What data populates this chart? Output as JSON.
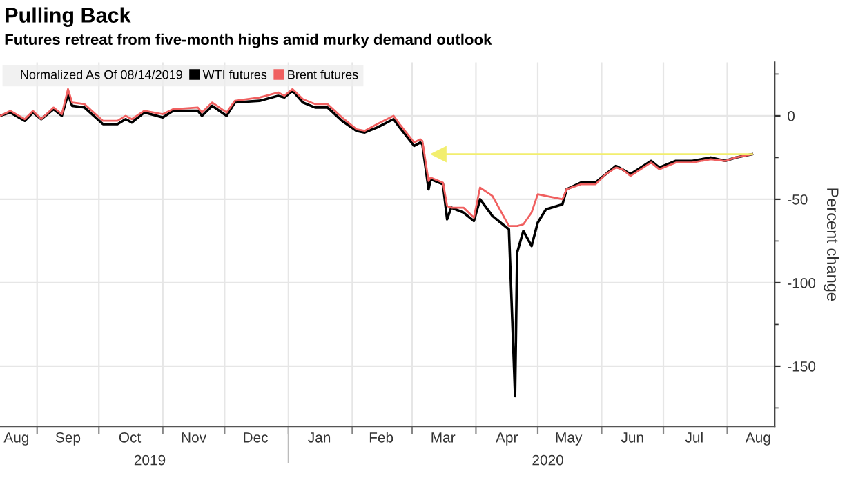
{
  "chart_data": {
    "type": "line",
    "title": "Pulling Back",
    "subtitle": "Futures retreat from five-month highs amid murky demand outlook",
    "ylabel": "Percent change",
    "legend_title": "Normalized As Of 08/14/2019",
    "legend": "top left",
    "grid": true,
    "xlim": [
      "2019-08-14",
      "2020-08-24"
    ],
    "xticks": [
      {
        "value": "2019-09-01",
        "label": null
      },
      {
        "value": "2019-10-01",
        "label": null
      },
      {
        "value": "2019-11-01",
        "label": null
      },
      {
        "value": "2019-12-01",
        "label": null
      },
      {
        "value": "2020-01-01",
        "label": null
      },
      {
        "value": "2020-02-01",
        "label": null
      },
      {
        "value": "2020-03-01",
        "label": null
      },
      {
        "value": "2020-04-01",
        "label": null
      },
      {
        "value": "2020-05-01",
        "label": null
      },
      {
        "value": "2020-06-01",
        "label": null
      },
      {
        "value": "2020-07-01",
        "label": null
      },
      {
        "value": "2020-08-01",
        "label": null
      },
      {
        "value": "2019-08-22",
        "label": "Aug"
      },
      {
        "value": "2019-09-16",
        "label": "Sep"
      },
      {
        "value": "2019-10-16",
        "label": "Oct"
      },
      {
        "value": "2019-11-16",
        "label": "Nov"
      },
      {
        "value": "2019-12-16",
        "label": "Dec"
      },
      {
        "value": "2020-01-16",
        "label": "Jan"
      },
      {
        "value": "2020-02-15",
        "label": "Feb"
      },
      {
        "value": "2020-03-16",
        "label": "Mar"
      },
      {
        "value": "2020-04-16",
        "label": "Apr"
      },
      {
        "value": "2020-05-16",
        "label": "May"
      },
      {
        "value": "2020-06-16",
        "label": "Jun"
      },
      {
        "value": "2020-07-16",
        "label": "Jul"
      },
      {
        "value": "2020-08-16",
        "label": "Aug"
      }
    ],
    "ylim": [
      -186,
      32
    ],
    "yticks": [
      {
        "value": 25,
        "label": null
      },
      0,
      {
        "value": -25,
        "label": null
      },
      -50,
      {
        "value": -75,
        "label": null
      },
      -100,
      {
        "value": -125,
        "label": null
      },
      -150,
      {
        "value": -175,
        "label": null
      }
    ],
    "annotations": [
      "2019",
      "2020"
    ],
    "series": [
      {
        "name": "WTI futures",
        "color": "#000000",
        "x": [
          "2019-08-14",
          "2019-08-19",
          "2019-08-26",
          "2019-08-30",
          "2019-09-03",
          "2019-09-09",
          "2019-09-13",
          "2019-09-16",
          "2019-09-18",
          "2019-09-24",
          "2019-10-03",
          "2019-10-10",
          "2019-10-14",
          "2019-10-17",
          "2019-10-23",
          "2019-11-01",
          "2019-11-06",
          "2019-11-18",
          "2019-11-20",
          "2019-11-25",
          "2019-12-02",
          "2019-12-06",
          "2019-12-18",
          "2019-12-27",
          "2019-12-30",
          "2020-01-03",
          "2020-01-08",
          "2020-01-14",
          "2020-01-20",
          "2020-01-27",
          "2020-02-03",
          "2020-02-07",
          "2020-02-13",
          "2020-02-21",
          "2020-02-24",
          "2020-03-02",
          "2020-03-05",
          "2020-03-06",
          "2020-03-09",
          "2020-03-10",
          "2020-03-16",
          "2020-03-18",
          "2020-03-20",
          "2020-03-26",
          "2020-03-31",
          "2020-04-03",
          "2020-04-09",
          "2020-04-17",
          "2020-04-20",
          "2020-04-21",
          "2020-04-24",
          "2020-04-28",
          "2020-05-01",
          "2020-05-05",
          "2020-05-13",
          "2020-05-15",
          "2020-05-22",
          "2020-05-29",
          "2020-06-03",
          "2020-06-08",
          "2020-06-11",
          "2020-06-15",
          "2020-06-25",
          "2020-06-29",
          "2020-07-07",
          "2020-07-15",
          "2020-07-24",
          "2020-07-31",
          "2020-08-05",
          "2020-08-13"
        ],
        "values": [
          0,
          2,
          -3,
          2,
          -2,
          4,
          0,
          13,
          6,
          5,
          -5,
          -5,
          -2,
          -4,
          2,
          -1,
          3,
          3,
          0,
          6,
          0,
          8,
          9,
          12,
          11,
          15,
          8,
          5,
          5,
          -3,
          -9,
          -10,
          -7,
          -2,
          -7,
          -18,
          -16,
          -17,
          -44,
          -38,
          -41,
          -62,
          -55,
          -58,
          -63,
          -50,
          -60,
          -68,
          -168,
          -82,
          -69,
          -78,
          -64,
          -56,
          -53,
          -44,
          -40,
          -40,
          -35,
          -30,
          -32,
          -35,
          -27,
          -31,
          -27,
          -27,
          -25,
          -27,
          -25,
          -23
        ]
      },
      {
        "name": "Brent futures",
        "color": "#f06060",
        "x": [
          "2019-08-14",
          "2019-08-19",
          "2019-08-26",
          "2019-08-30",
          "2019-09-03",
          "2019-09-09",
          "2019-09-13",
          "2019-09-16",
          "2019-09-18",
          "2019-09-24",
          "2019-10-03",
          "2019-10-10",
          "2019-10-14",
          "2019-10-17",
          "2019-10-23",
          "2019-11-01",
          "2019-11-06",
          "2019-11-18",
          "2019-11-20",
          "2019-11-25",
          "2019-12-02",
          "2019-12-06",
          "2019-12-18",
          "2019-12-27",
          "2019-12-30",
          "2020-01-03",
          "2020-01-08",
          "2020-01-14",
          "2020-01-20",
          "2020-01-27",
          "2020-02-03",
          "2020-02-07",
          "2020-02-13",
          "2020-02-21",
          "2020-02-24",
          "2020-03-02",
          "2020-03-05",
          "2020-03-06",
          "2020-03-09",
          "2020-03-10",
          "2020-03-16",
          "2020-03-18",
          "2020-03-20",
          "2020-03-26",
          "2020-03-31",
          "2020-04-03",
          "2020-04-09",
          "2020-04-17",
          "2020-04-21",
          "2020-04-24",
          "2020-04-28",
          "2020-05-01",
          "2020-05-05",
          "2020-05-13",
          "2020-05-15",
          "2020-05-22",
          "2020-05-29",
          "2020-06-03",
          "2020-06-08",
          "2020-06-11",
          "2020-06-15",
          "2020-06-25",
          "2020-06-29",
          "2020-07-07",
          "2020-07-15",
          "2020-07-24",
          "2020-07-31",
          "2020-08-05",
          "2020-08-13"
        ],
        "values": [
          0,
          3,
          -2,
          3,
          -2,
          5,
          1,
          16,
          8,
          7,
          -3,
          -3,
          0,
          -2,
          3,
          1,
          4,
          5,
          2,
          8,
          2,
          9,
          11,
          14,
          12,
          16,
          10,
          7,
          7,
          -1,
          -8,
          -9,
          -5,
          0,
          -5,
          -16,
          -14,
          -15,
          -39,
          -37,
          -40,
          -54,
          -55,
          -55,
          -61,
          -43,
          -48,
          -66,
          -66,
          -65,
          -58,
          -47,
          -48,
          -50,
          -44,
          -41,
          -41,
          -35,
          -31,
          -32,
          -36,
          -28,
          -32,
          -28,
          -28,
          -26,
          -27,
          -25,
          -23
        ]
      },
      {
        "type": "line",
        "color": "#f2ee6e",
        "marker": "triangle",
        "x": [
          "2020-08-13",
          "2020-03-14"
        ],
        "values": [
          -23,
          -23
        ]
      }
    ]
  }
}
